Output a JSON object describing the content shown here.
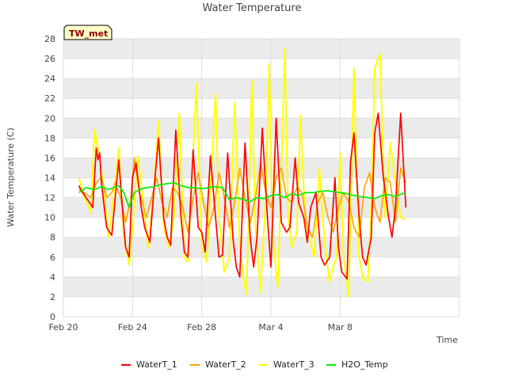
{
  "chart_data": {
    "type": "line",
    "title": "Water Temperature",
    "xlabel": "Time",
    "ylabel": "Water Temperature (C)",
    "badge": "TW_met",
    "ylim": [
      0,
      28
    ],
    "yticks": [
      0,
      2,
      4,
      6,
      8,
      10,
      12,
      14,
      16,
      18,
      20,
      22,
      24,
      26,
      28
    ],
    "xlim": [
      0,
      22.9
    ],
    "xticks": [
      {
        "value": 0,
        "label": "Feb 20"
      },
      {
        "value": 4,
        "label": "Feb 24"
      },
      {
        "value": 8,
        "label": "Feb 28"
      },
      {
        "value": 12,
        "label": "Mar 4"
      },
      {
        "value": 16,
        "label": "Mar 8"
      }
    ],
    "grid": true,
    "legend_position": "bottom",
    "colors": {
      "WaterT_1": "#ff0000",
      "WaterT_2": "#ffa500",
      "WaterT_3": "#ffff00",
      "H2O_Temp": "#00ee00",
      "band": "#ebebeb",
      "grid": "#dddddd"
    },
    "series": [
      {
        "name": "WaterT_1",
        "x": [
          0.9,
          1.0,
          1.7,
          1.9,
          2.0,
          2.1,
          2.2,
          2.3,
          2.5,
          2.8,
          3.0,
          3.2,
          3.5,
          3.6,
          3.8,
          4.0,
          4.2,
          4.5,
          4.7,
          5.0,
          5.2,
          5.5,
          5.8,
          6.0,
          6.2,
          6.5,
          6.8,
          7.0,
          7.2,
          7.5,
          7.8,
          8.0,
          8.2,
          8.5,
          8.8,
          9.0,
          9.2,
          9.5,
          9.8,
          10.0,
          10.2,
          10.5,
          10.8,
          11.0,
          11.2,
          11.5,
          11.8,
          12.0,
          12.3,
          12.6,
          12.9,
          13.1,
          13.4,
          13.6,
          13.9,
          14.1,
          14.3,
          14.6,
          14.9,
          15.1,
          15.4,
          15.7,
          15.9,
          16.1,
          16.4,
          16.6,
          16.8,
          17.1,
          17.3
        ],
        "y": [
          13.2,
          12.8,
          11.0,
          17.0,
          15.8,
          16.5,
          13.5,
          12.0,
          9.0,
          8.2,
          12.0,
          15.8,
          9.0,
          7.0,
          6.0,
          14.0,
          15.5,
          11.0,
          9.0,
          7.5,
          12.0,
          18.0,
          10.0,
          8.0,
          7.2,
          18.8,
          10.0,
          6.5,
          6.0,
          16.8,
          9.0,
          8.5,
          6.5,
          16.2,
          10.0,
          6.0,
          6.2,
          16.5,
          8.0,
          5.0,
          4.0,
          17.5,
          8.0,
          5.0,
          8.0,
          19.0,
          10.0,
          5.0,
          20.0,
          9.5,
          8.5,
          9.0,
          16.0,
          11.5,
          10.0,
          7.5,
          11.0,
          12.5,
          6.0,
          5.2,
          6.0,
          14.0,
          7.0,
          4.5,
          3.8,
          15.5,
          18.5,
          10.0,
          6.0
        ],
        "x2": [
          17.5,
          17.8,
          18.0,
          18.2,
          18.5,
          18.8,
          19.0,
          19.2,
          19.5,
          19.8
        ],
        "y2": [
          5.2,
          8.0,
          18.5,
          20.5,
          14.0,
          10.0,
          8.0,
          11.0,
          20.5,
          11.0
        ]
      },
      {
        "name": "WaterT_2",
        "x": [
          0.9,
          1.2,
          1.6,
          1.9,
          2.2,
          2.5,
          2.8,
          3.0,
          3.3,
          3.6,
          3.9,
          4.1,
          4.4,
          4.8,
          5.1,
          5.4,
          5.7,
          6.0,
          6.3,
          6.6,
          6.9,
          7.2,
          7.5,
          7.8,
          8.1,
          8.4,
          8.7,
          9.0,
          9.3,
          9.6,
          9.9,
          10.2,
          10.5,
          10.8,
          11.1,
          11.4,
          11.7,
          12.0,
          12.3,
          12.6,
          12.9,
          13.2,
          13.5,
          13.8,
          14.1,
          14.4,
          14.7,
          15.0,
          15.3,
          15.6,
          15.9,
          16.2,
          16.5,
          16.8,
          17.1,
          17.4,
          17.7,
          18.0,
          18.3,
          18.6,
          18.9,
          19.2,
          19.5,
          19.8
        ],
        "y": [
          12.8,
          12.5,
          12.0,
          13.5,
          14.0,
          12.0,
          12.5,
          13.5,
          12.0,
          9.5,
          12.0,
          16.0,
          12.5,
          10.0,
          12.0,
          14.0,
          11.5,
          10.0,
          13.0,
          12.5,
          11.0,
          8.5,
          12.0,
          14.5,
          11.5,
          9.0,
          11.0,
          14.5,
          12.0,
          9.0,
          11.5,
          15.0,
          12.0,
          9.5,
          12.0,
          15.5,
          12.5,
          11.0,
          14.0,
          15.0,
          12.0,
          11.5,
          13.0,
          12.5,
          9.0,
          8.0,
          11.5,
          12.5,
          10.0,
          8.5,
          11.0,
          12.5,
          11.5,
          9.0,
          8.0,
          13.0,
          14.5,
          11.0,
          9.5,
          14.0,
          13.5,
          9.5,
          15.0,
          13.5
        ]
      },
      {
        "name": "WaterT_3",
        "x": [
          0.9,
          1.2,
          1.6,
          1.8,
          2.0,
          2.3,
          2.6,
          2.9,
          3.2,
          3.5,
          3.8,
          4.0,
          4.3,
          4.6,
          4.9,
          5.2,
          5.5,
          5.8,
          6.1,
          6.4,
          6.7,
          7.0,
          7.2,
          7.4,
          7.7,
          8.0,
          8.3,
          8.5,
          8.8,
          9.0,
          9.3,
          9.6,
          9.9,
          10.2,
          10.4,
          10.6,
          10.9,
          11.1,
          11.4,
          11.7,
          11.9,
          12.1,
          12.4,
          12.6,
          12.8,
          13.0,
          13.2,
          13.5,
          13.7,
          14.0,
          14.2,
          14.5,
          14.8,
          15.1,
          15.4,
          15.6,
          15.8,
          16.0,
          16.2,
          16.5,
          16.8,
          17.1,
          17.3,
          17.6,
          17.8,
          18.0,
          18.3,
          18.6,
          18.9,
          19.2,
          19.5,
          19.8
        ],
        "y": [
          14.0,
          12.0,
          10.5,
          18.8,
          17.0,
          13.5,
          8.0,
          12.0,
          17.0,
          8.0,
          5.2,
          9.0,
          16.2,
          12.0,
          7.0,
          12.0,
          19.7,
          9.0,
          7.0,
          10.0,
          20.5,
          6.0,
          5.5,
          13.0,
          23.5,
          7.0,
          5.5,
          13.0,
          22.5,
          10.0,
          4.5,
          6.0,
          21.5,
          7.0,
          4.0,
          2.3,
          23.8,
          9.0,
          2.5,
          12.0,
          25.5,
          8.0,
          3.0,
          14.5,
          27.0,
          10.0,
          7.0,
          8.5,
          20.3,
          9.0,
          8.0,
          6.0,
          15.0,
          7.5,
          3.5,
          5.0,
          6.0,
          16.5,
          6.0,
          2.0,
          25.0,
          6.0,
          4.0,
          3.5,
          11.0,
          25.0,
          26.5,
          10.0,
          17.5,
          13.5,
          10.0,
          9.8
        ]
      },
      {
        "name": "H2O_Temp",
        "x": [
          0.9,
          1.3,
          1.8,
          2.2,
          2.6,
          2.9,
          3.2,
          3.5,
          3.8,
          4.1,
          4.4,
          4.8,
          5.2,
          5.6,
          6.0,
          6.4,
          6.8,
          7.2,
          7.6,
          8.0,
          8.4,
          8.8,
          9.2,
          9.6,
          10.0,
          10.4,
          10.8,
          11.2,
          11.6,
          12.0,
          12.4,
          12.8,
          13.2,
          13.6,
          14.0,
          14.4,
          14.8,
          15.2,
          15.6,
          16.0,
          16.4,
          16.8,
          17.2,
          17.6,
          18.0,
          18.4,
          18.8,
          19.2,
          19.6,
          19.8
        ],
        "y": [
          12.5,
          13.0,
          12.8,
          13.1,
          12.8,
          13.0,
          13.2,
          12.5,
          11.0,
          12.5,
          12.8,
          13.0,
          13.1,
          13.3,
          13.4,
          13.5,
          13.2,
          13.0,
          13.0,
          12.9,
          13.0,
          13.1,
          13.0,
          11.8,
          12.0,
          11.8,
          11.6,
          12.0,
          11.9,
          12.2,
          12.3,
          12.0,
          12.4,
          12.2,
          12.5,
          12.5,
          12.6,
          12.7,
          12.6,
          12.5,
          12.4,
          12.2,
          12.1,
          12.0,
          11.9,
          12.2,
          12.3,
          12.1,
          12.4,
          12.5
        ]
      }
    ]
  }
}
